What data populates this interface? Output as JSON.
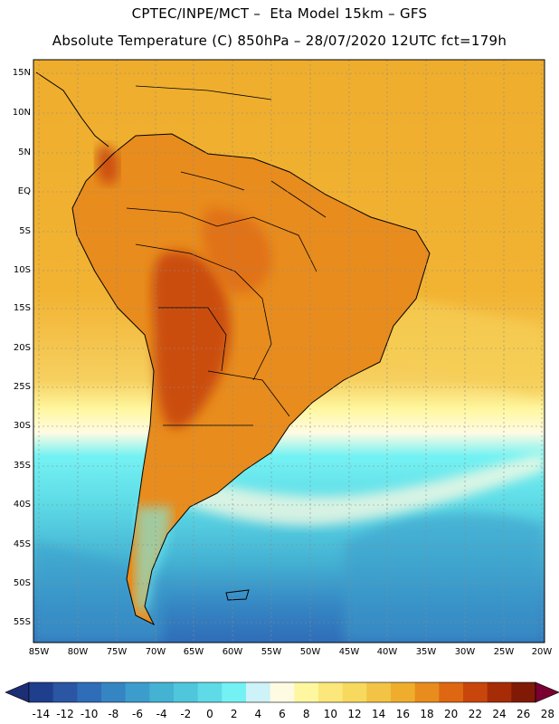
{
  "header": {
    "line1": "CPTEC/INPE/MCT –  Eta Model 15km – GFS",
    "line2": "Absolute Temperature (C) 850hPa – 28/07/2020 12UTC fct=179h"
  },
  "axes": {
    "lat_labels": [
      "15N",
      "10N",
      "5N",
      "EQ",
      "5S",
      "10S",
      "15S",
      "20S",
      "25S",
      "30S",
      "35S",
      "40S",
      "45S",
      "50S",
      "55S"
    ],
    "lon_labels": [
      "85W",
      "80W",
      "75W",
      "70W",
      "65W",
      "60W",
      "55W",
      "50W",
      "45W",
      "40W",
      "35W",
      "30W",
      "25W",
      "20W"
    ]
  },
  "colorbar": {
    "labels": [
      "-14",
      "-12",
      "-10",
      "-8",
      "-6",
      "-4",
      "-2",
      "0",
      "2",
      "4",
      "6",
      "8",
      "10",
      "12",
      "14",
      "16",
      "18",
      "20",
      "22",
      "24",
      "26",
      "28"
    ],
    "colors": [
      "#1f3f8c",
      "#2a56a3",
      "#2f6db8",
      "#3585c3",
      "#3c9dcc",
      "#44b2d3",
      "#4fc6dc",
      "#5edbe6",
      "#74f2f3",
      "#cdf2f8",
      "#fffbe3",
      "#fff7a0",
      "#fbe77a",
      "#f7d95d",
      "#f2c344",
      "#efad2d",
      "#e88c1d",
      "#de6712",
      "#c8460c",
      "#a62c08",
      "#801a06"
    ],
    "under_color": "#1c2e74",
    "over_color": "#7a0032"
  }
}
